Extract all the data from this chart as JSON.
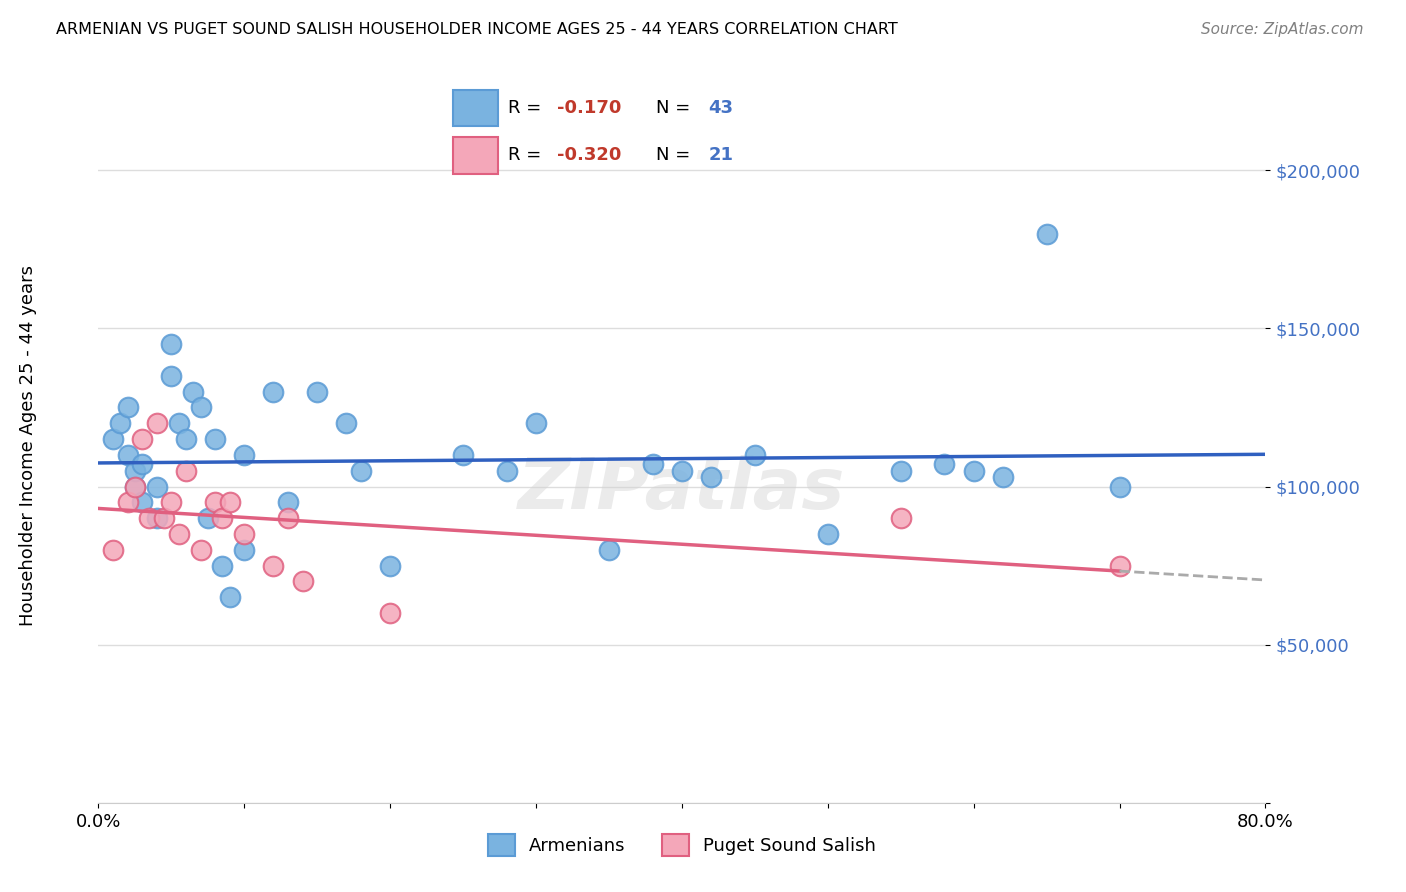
{
  "title": "ARMENIAN VS PUGET SOUND SALISH HOUSEHOLDER INCOME AGES 25 - 44 YEARS CORRELATION CHART",
  "source": "Source: ZipAtlas.com",
  "ylabel": "Householder Income Ages 25 - 44 years",
  "xlim": [
    0.0,
    0.8
  ],
  "ylim": [
    0,
    220000
  ],
  "yticks": [
    0,
    50000,
    100000,
    150000,
    200000
  ],
  "ytick_labels": [
    "",
    "$50,000",
    "$100,000",
    "$150,000",
    "$200,000"
  ],
  "armenian_color": "#7ab3e0",
  "armenian_edge": "#5b9bd5",
  "puget_color": "#f4a7b9",
  "puget_edge": "#e06080",
  "trend_armenian_color": "#3060c0",
  "trend_puget_color": "#e06080",
  "watermark": "ZIPatlas",
  "armenian_x": [
    0.01,
    0.015,
    0.02,
    0.02,
    0.025,
    0.025,
    0.03,
    0.03,
    0.04,
    0.04,
    0.05,
    0.05,
    0.055,
    0.06,
    0.065,
    0.07,
    0.075,
    0.08,
    0.085,
    0.09,
    0.1,
    0.1,
    0.12,
    0.13,
    0.15,
    0.17,
    0.18,
    0.2,
    0.25,
    0.28,
    0.3,
    0.35,
    0.38,
    0.4,
    0.42,
    0.45,
    0.5,
    0.55,
    0.58,
    0.6,
    0.62,
    0.65,
    0.7
  ],
  "armenian_y": [
    115000,
    120000,
    110000,
    125000,
    100000,
    105000,
    107000,
    95000,
    100000,
    90000,
    145000,
    135000,
    120000,
    115000,
    130000,
    125000,
    90000,
    115000,
    75000,
    65000,
    110000,
    80000,
    130000,
    95000,
    130000,
    120000,
    105000,
    75000,
    110000,
    105000,
    120000,
    80000,
    107000,
    105000,
    103000,
    110000,
    85000,
    105000,
    107000,
    105000,
    103000,
    180000,
    100000
  ],
  "puget_x": [
    0.01,
    0.02,
    0.025,
    0.03,
    0.035,
    0.04,
    0.045,
    0.05,
    0.055,
    0.06,
    0.07,
    0.08,
    0.085,
    0.09,
    0.1,
    0.12,
    0.13,
    0.14,
    0.2,
    0.55,
    0.7
  ],
  "puget_y": [
    80000,
    95000,
    100000,
    115000,
    90000,
    120000,
    90000,
    95000,
    85000,
    105000,
    80000,
    95000,
    90000,
    95000,
    85000,
    75000,
    90000,
    70000,
    60000,
    90000,
    75000
  ],
  "background_color": "#ffffff",
  "grid_color": "#dddddd"
}
